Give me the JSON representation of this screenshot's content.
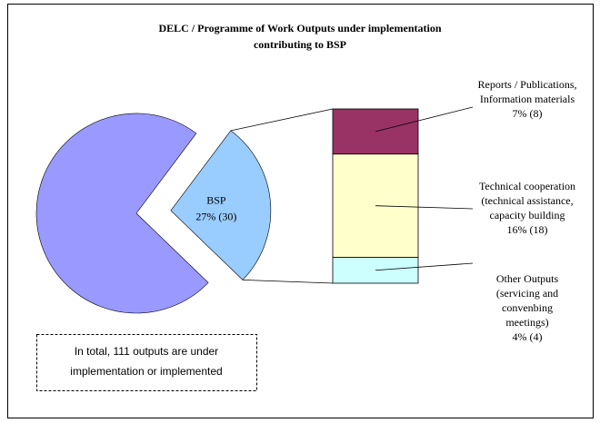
{
  "chart_data": {
    "type": "pie",
    "title": [
      "DELC / Programme of Work Outputs under implementation",
      "contributing to BSP"
    ],
    "categories": [
      null,
      "BSP"
    ],
    "values": [
      73,
      27
    ],
    "value_labels": [
      null,
      "27% (30)"
    ],
    "colors": [
      "#9999ff",
      "#99ccff"
    ],
    "breakdown": {
      "type": "bar",
      "categories": [
        [
          "Reports / Publications,",
          "Information materials"
        ],
        [
          "Technical cooperation",
          "(technical assistance,",
          "capacity building"
        ],
        [
          "Other Outputs",
          "(servicing and",
          "convenbing",
          "meetings)"
        ]
      ],
      "values": [
        7,
        16,
        4
      ],
      "value_labels": [
        "7% (8)",
        "16% (18)",
        "4% (4)"
      ],
      "colors": [
        "#993366",
        "#ffffcc",
        "#ccffff"
      ]
    },
    "annotation": [
      "In total, 111 outputs are under",
      "implementation or implemented"
    ]
  }
}
